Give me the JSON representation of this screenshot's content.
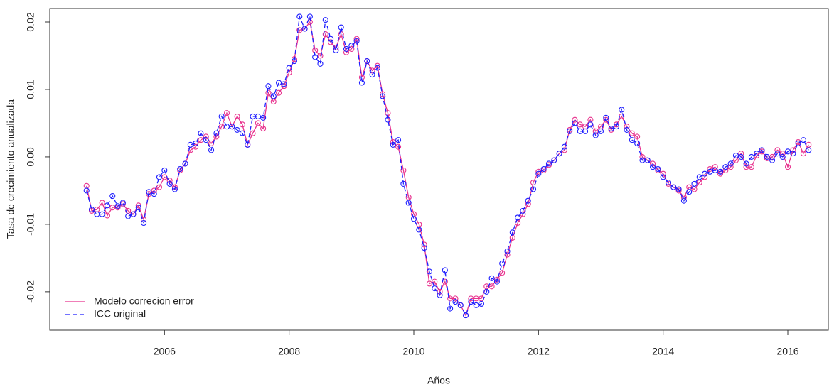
{
  "chart_data": {
    "type": "line",
    "x_label": "Años",
    "y_label": "Tasa de crecimiento anualizada",
    "x": [
      2004.75,
      2004.8333,
      2004.9167,
      2005,
      2005.0833,
      2005.1667,
      2005.25,
      2005.3333,
      2005.4167,
      2005.5,
      2005.5833,
      2005.6667,
      2005.75,
      2005.8333,
      2005.9167,
      2006,
      2006.0833,
      2006.1667,
      2006.25,
      2006.3333,
      2006.4167,
      2006.5,
      2006.5833,
      2006.6667,
      2006.75,
      2006.8333,
      2006.9167,
      2007,
      2007.0833,
      2007.1667,
      2007.25,
      2007.3333,
      2007.4167,
      2007.5,
      2007.5833,
      2007.6667,
      2007.75,
      2007.8333,
      2007.9167,
      2008,
      2008.0833,
      2008.1667,
      2008.25,
      2008.3333,
      2008.4167,
      2008.5,
      2008.5833,
      2008.6667,
      2008.75,
      2008.8333,
      2008.9167,
      2009,
      2009.0833,
      2009.1667,
      2009.25,
      2009.3333,
      2009.4167,
      2009.5,
      2009.5833,
      2009.6667,
      2009.75,
      2009.8333,
      2009.9167,
      2010,
      2010.0833,
      2010.1667,
      2010.25,
      2010.3333,
      2010.4167,
      2010.5,
      2010.5833,
      2010.6667,
      2010.75,
      2010.8333,
      2010.9167,
      2011,
      2011.0833,
      2011.1667,
      2011.25,
      2011.3333,
      2011.4167,
      2011.5,
      2011.5833,
      2011.6667,
      2011.75,
      2011.8333,
      2011.9167,
      2012,
      2012.0833,
      2012.1667,
      2012.25,
      2012.3333,
      2012.4167,
      2012.5,
      2012.5833,
      2012.6667,
      2012.75,
      2012.8333,
      2012.9167,
      2013,
      2013.0833,
      2013.1667,
      2013.25,
      2013.3333,
      2013.4167,
      2013.5,
      2013.5833,
      2013.6667,
      2013.75,
      2013.8333,
      2013.9167,
      2014,
      2014.0833,
      2014.1667,
      2014.25,
      2014.3333,
      2014.4167,
      2014.5,
      2014.5833,
      2014.6667,
      2014.75,
      2014.8333,
      2014.9167,
      2015,
      2015.0833,
      2015.1667,
      2015.25,
      2015.3333,
      2015.4167,
      2015.5,
      2015.5833,
      2015.6667,
      2015.75,
      2015.8333,
      2015.9167,
      2016,
      2016.0833,
      2016.1667,
      2016.25,
      2016.3333
    ],
    "series": [
      {
        "name": "Modelo correcion error",
        "color": "#e8338e",
        "linestyle": "solid",
        "values": [
          -0.0043,
          -0.008,
          -0.0078,
          -0.0068,
          -0.0087,
          -0.0075,
          -0.0075,
          -0.007,
          -0.008,
          -0.0085,
          -0.0072,
          -0.0093,
          -0.0055,
          -0.005,
          -0.0045,
          -0.003,
          -0.0035,
          -0.0045,
          -0.002,
          -0.001,
          0.001,
          0.0015,
          0.0025,
          0.003,
          0.002,
          0.003,
          0.0045,
          0.0065,
          0.0045,
          0.006,
          0.0048,
          0.0018,
          0.0035,
          0.005,
          0.0042,
          0.0095,
          0.0082,
          0.0095,
          0.0105,
          0.0125,
          0.0145,
          0.0188,
          0.019,
          0.02,
          0.0158,
          0.015,
          0.0182,
          0.017,
          0.0162,
          0.0182,
          0.0155,
          0.016,
          0.0175,
          0.0118,
          0.0142,
          0.0128,
          0.0135,
          0.0093,
          0.0065,
          0.0022,
          0.0015,
          -0.002,
          -0.006,
          -0.0085,
          -0.01,
          -0.013,
          -0.0188,
          -0.0185,
          -0.02,
          -0.0185,
          -0.021,
          -0.021,
          -0.022,
          -0.0235,
          -0.021,
          -0.021,
          -0.021,
          -0.0192,
          -0.0192,
          -0.0182,
          -0.0172,
          -0.0145,
          -0.012,
          -0.0098,
          -0.0085,
          -0.007,
          -0.0038,
          -0.0022,
          -0.002,
          -0.0012,
          -0.0005,
          0.0005,
          0.001,
          0.004,
          0.0055,
          0.0048,
          0.0045,
          0.0055,
          0.0038,
          0.0045,
          0.0055,
          0.004,
          0.0048,
          0.006,
          0.0045,
          0.0035,
          0.003,
          0,
          -0.0005,
          -0.001,
          -0.002,
          -0.0025,
          -0.004,
          -0.0045,
          -0.005,
          -0.006,
          -0.0045,
          -0.0048,
          -0.0038,
          -0.003,
          -0.0018,
          -0.0015,
          -0.0025,
          -0.002,
          -0.0015,
          -0.0005,
          0.0005,
          -0.0015,
          -0.0015,
          0.0002,
          0.0008,
          -0.0002,
          0,
          0.001,
          0.0005,
          -0.0015,
          0.001,
          0.0022,
          0.0005,
          0.0018
        ]
      },
      {
        "name": "ICC original",
        "color": "#1f1fff",
        "linestyle": "dashed",
        "values": [
          -0.005,
          -0.0078,
          -0.0085,
          -0.0085,
          -0.0072,
          -0.0058,
          -0.0073,
          -0.0068,
          -0.0088,
          -0.0085,
          -0.0075,
          -0.0098,
          -0.0052,
          -0.0055,
          -0.003,
          -0.002,
          -0.004,
          -0.0048,
          -0.0018,
          -0.001,
          0.0018,
          0.002,
          0.0035,
          0.0025,
          0.001,
          0.0035,
          0.006,
          0.0045,
          0.0045,
          0.004,
          0.0035,
          0.0018,
          0.006,
          0.006,
          0.0058,
          0.0105,
          0.009,
          0.011,
          0.0108,
          0.0132,
          0.0142,
          0.0208,
          0.019,
          0.0208,
          0.0148,
          0.0138,
          0.0203,
          0.0175,
          0.0158,
          0.0192,
          0.016,
          0.0165,
          0.0172,
          0.011,
          0.0142,
          0.0122,
          0.0132,
          0.009,
          0.0055,
          0.0018,
          0.0025,
          -0.004,
          -0.0068,
          -0.0092,
          -0.0108,
          -0.0135,
          -0.017,
          -0.0195,
          -0.0205,
          -0.0168,
          -0.0225,
          -0.0215,
          -0.022,
          -0.0235,
          -0.0215,
          -0.022,
          -0.0218,
          -0.02,
          -0.018,
          -0.0185,
          -0.0158,
          -0.014,
          -0.0112,
          -0.009,
          -0.008,
          -0.0065,
          -0.0048,
          -0.0025,
          -0.0018,
          -0.001,
          -0.0005,
          0.0005,
          0.0015,
          0.0038,
          0.005,
          0.0038,
          0.0038,
          0.0048,
          0.0032,
          0.0038,
          0.0058,
          0.0042,
          0.0045,
          0.007,
          0.004,
          0.0025,
          0.002,
          -0.0005,
          -0.0005,
          -0.0015,
          -0.0018,
          -0.003,
          -0.0038,
          -0.0045,
          -0.0048,
          -0.0065,
          -0.0052,
          -0.004,
          -0.003,
          -0.0025,
          -0.0022,
          -0.002,
          -0.0022,
          -0.0015,
          -0.001,
          0.0002,
          0,
          -0.001,
          0,
          0.0005,
          0.001,
          0,
          -0.0005,
          0.0005,
          0,
          0.0008,
          0.0005,
          0.002,
          0.0025,
          0.001
        ]
      }
    ],
    "xlim": [
      2004.16,
      2016.65
    ],
    "ylim": [
      -0.0257,
      0.022
    ],
    "xticks": [
      2006,
      2008,
      2010,
      2012,
      2014,
      2016
    ],
    "yticks": [
      -0.02,
      -0.01,
      {
        "value": 0,
        "label": "0.00"
      },
      0.01,
      0.02
    ],
    "legend": "bottomleft",
    "markers": "open-circle"
  }
}
